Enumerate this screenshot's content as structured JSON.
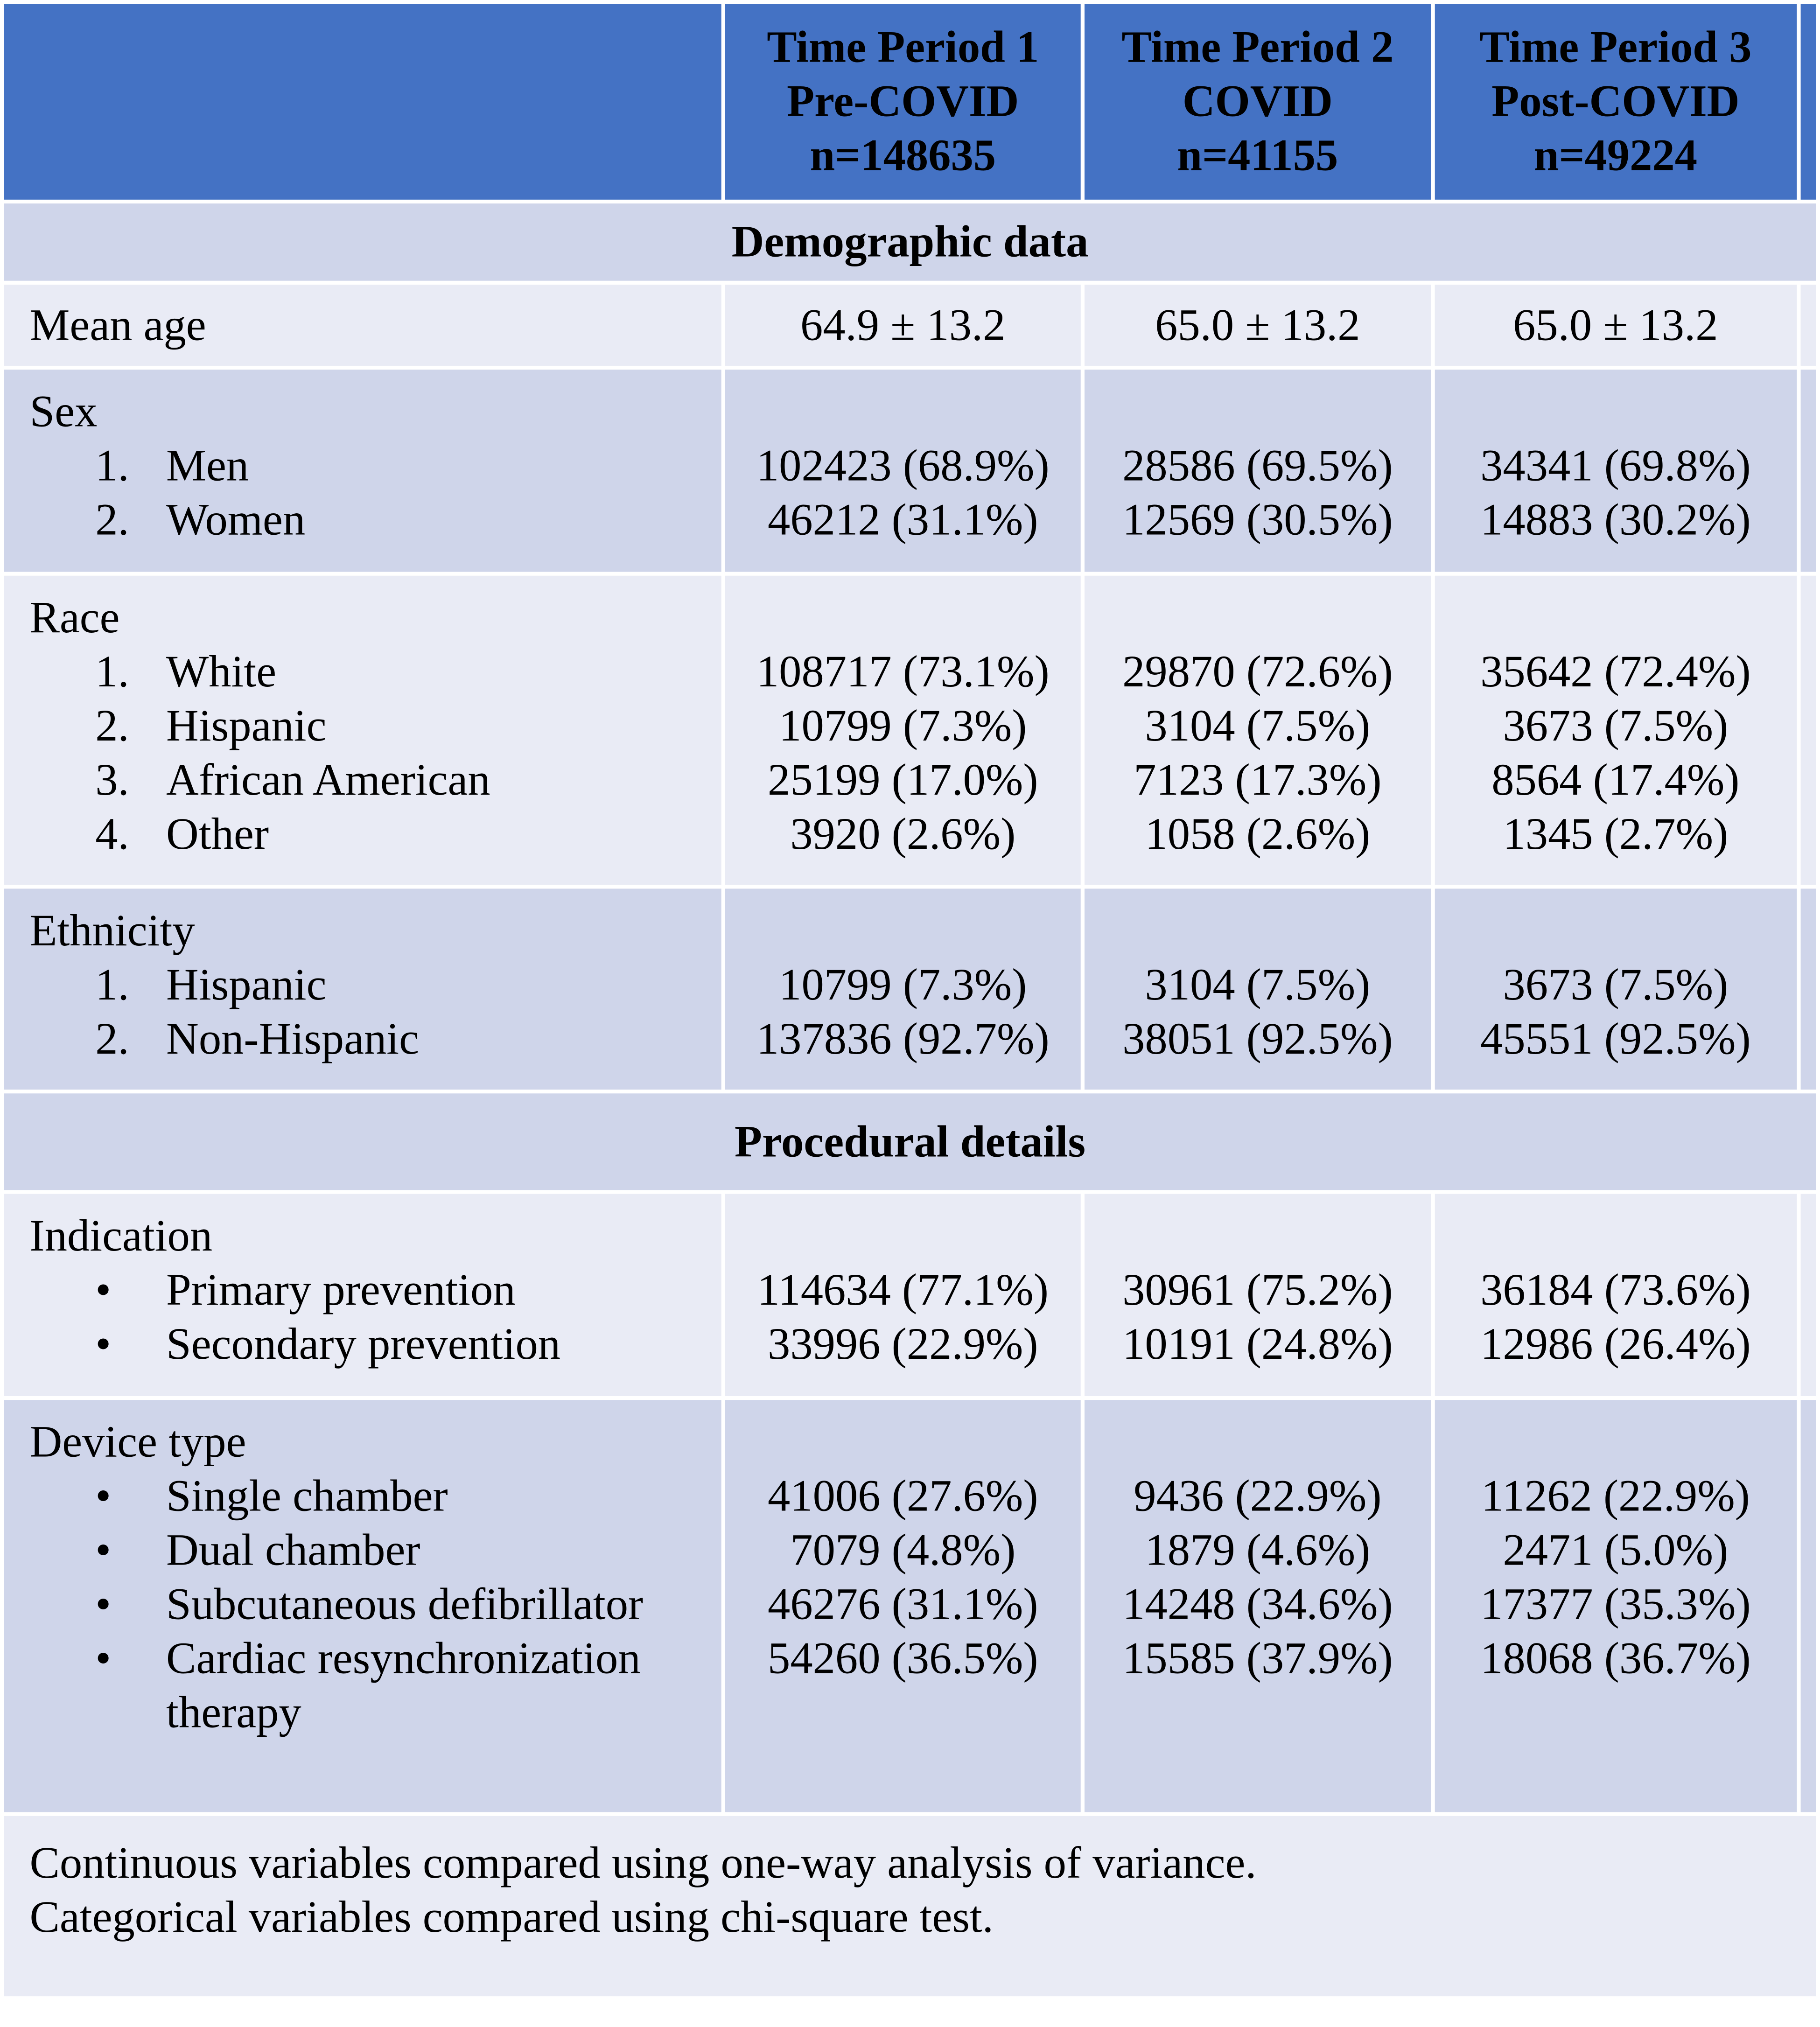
{
  "columns": [
    {
      "label": "Time Period 1",
      "subtitle": "Pre-COVID",
      "n": "n=148635"
    },
    {
      "label": "Time Period 2",
      "subtitle": "COVID",
      "n": "n=41155"
    },
    {
      "label": "Time Period 3",
      "subtitle": "Post-COVID",
      "n": "n=49224"
    }
  ],
  "demographic": {
    "title": "Demographic data",
    "mean_age": {
      "label": "Mean age",
      "values": [
        "64.9 ± 13.2",
        "65.0 ± 13.2",
        "65.0 ± 13.2"
      ]
    },
    "sex": {
      "label": "Sex",
      "items": [
        {
          "marker": "1.",
          "label": "Men",
          "values": [
            "102423 (68.9%)",
            "28586 (69.5%)",
            "34341 (69.8%)"
          ]
        },
        {
          "marker": "2.",
          "label": "Women",
          "values": [
            "46212 (31.1%)",
            "12569 (30.5%)",
            "14883 (30.2%)"
          ]
        }
      ]
    },
    "race": {
      "label": "Race",
      "items": [
        {
          "marker": "1.",
          "label": "White",
          "values": [
            "108717 (73.1%)",
            "29870 (72.6%)",
            "35642 (72.4%)"
          ]
        },
        {
          "marker": "2.",
          "label": "Hispanic",
          "values": [
            "10799 (7.3%)",
            "3104 (7.5%)",
            "3673 (7.5%)"
          ]
        },
        {
          "marker": "3.",
          "label": "African American",
          "values": [
            "25199 (17.0%)",
            "7123 (17.3%)",
            "8564 (17.4%)"
          ]
        },
        {
          "marker": "4.",
          "label": "Other",
          "values": [
            "3920 (2.6%)",
            "1058 (2.6%)",
            "1345 (2.7%)"
          ]
        }
      ]
    },
    "ethnicity": {
      "label": "Ethnicity",
      "items": [
        {
          "marker": "1.",
          "label": "Hispanic",
          "values": [
            "10799 (7.3%)",
            "3104 (7.5%)",
            "3673 (7.5%)"
          ]
        },
        {
          "marker": "2.",
          "label": "Non-Hispanic",
          "values": [
            "137836 (92.7%)",
            "38051 (92.5%)",
            "45551 (92.5%)"
          ]
        }
      ]
    }
  },
  "procedural": {
    "title": "Procedural details",
    "indication": {
      "label": "Indication",
      "items": [
        {
          "marker": "•",
          "label": "Primary prevention",
          "values": [
            "114634 (77.1%)",
            "30961 (75.2%)",
            "36184 (73.6%)"
          ]
        },
        {
          "marker": "•",
          "label": "Secondary prevention",
          "values": [
            "33996 (22.9%)",
            "10191 (24.8%)",
            "12986 (26.4%)"
          ]
        }
      ]
    },
    "device_type": {
      "label": "Device type",
      "items": [
        {
          "marker": "•",
          "label": "Single chamber",
          "values": [
            "41006 (27.6%)",
            "9436 (22.9%)",
            "11262 (22.9%)"
          ]
        },
        {
          "marker": "•",
          "label": "Dual chamber",
          "values": [
            "7079 (4.8%)",
            "1879 (4.6%)",
            "2471 (5.0%)"
          ]
        },
        {
          "marker": "•",
          "label": "Subcutaneous defibrillator",
          "values": [
            "46276 (31.1%)",
            "14248 (34.6%)",
            "17377 (35.3%)"
          ]
        },
        {
          "marker": "•",
          "label": "Cardiac resynchronization therapy",
          "values": [
            "54260 (36.5%)",
            "15585 (37.9%)",
            "18068 (36.7%)"
          ]
        }
      ]
    }
  },
  "footnotes": [
    "Continuous variables compared using one-way analysis of variance.",
    "Categorical variables compared using chi-square test."
  ]
}
